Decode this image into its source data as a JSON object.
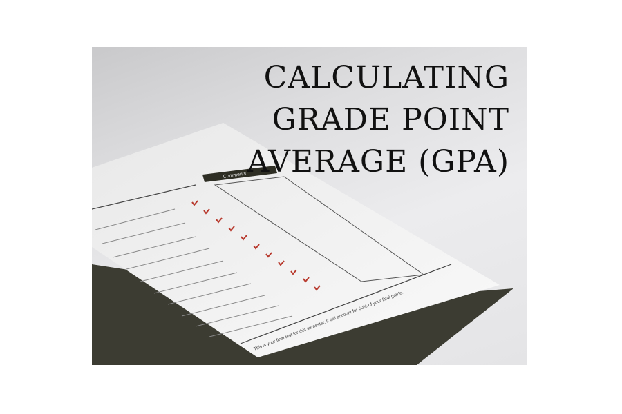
{
  "title": {
    "line1": "CALCULATING",
    "line2": "GRADE POINT",
    "line3": "AVERAGE (GPA)"
  },
  "paper": {
    "comments_heading": "Comments",
    "footer": "This is your final test for this semester. It will account for 60% of your final grade."
  },
  "colors": {
    "title": "#111111",
    "folder": "#3a3a30",
    "checkmark": "#b83a2e"
  }
}
